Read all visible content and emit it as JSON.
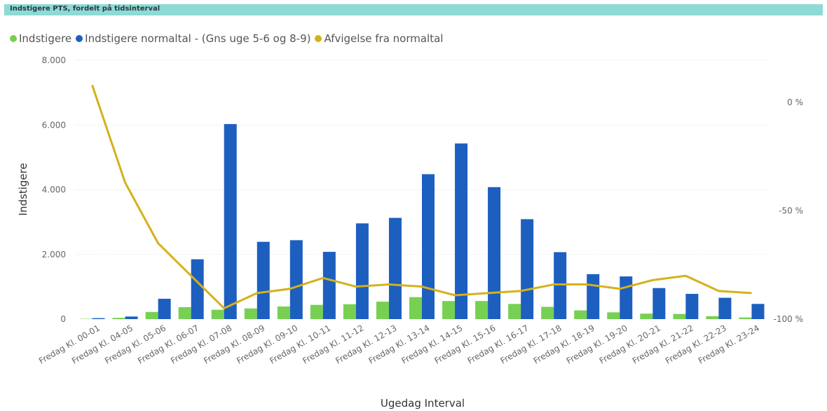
{
  "header": {
    "title": "Indstigere PTS, fordelt på tidsinterval"
  },
  "legend": [
    {
      "label": "Indstigere",
      "color": "#77d052"
    },
    {
      "label": "Indstigere normaltal - (Gns uge 5-6 og 8-9)",
      "color": "#1d5fbf"
    },
    {
      "label": "Afvigelse fra normaltal",
      "color": "#d4b11b"
    }
  ],
  "chart_data": {
    "type": "bar",
    "categories": [
      "Fredag Kl. 00-01",
      "Fredag Kl. 04-05",
      "Fredag Kl. 05-06",
      "Fredag Kl. 06-07",
      "Fredag Kl. 07-08",
      "Fredag Kl. 08-09",
      "Fredag Kl. 09-10",
      "Fredag Kl. 10-11",
      "Fredag Kl. 11-12",
      "Fredag Kl. 12-13",
      "Fredag Kl. 13-14",
      "Fredag Kl. 14-15",
      "Fredag Kl. 15-16",
      "Fredag Kl. 16-17",
      "Fredag Kl. 17-18",
      "Fredag Kl. 18-19",
      "Fredag Kl. 19-20",
      "Fredag Kl. 20-21",
      "Fredag Kl. 21-22",
      "Fredag Kl. 22-23",
      "Fredag Kl. 23-24"
    ],
    "series": [
      {
        "name": "Indstigere",
        "axis": "left",
        "kind": "bar",
        "color": "#77d052",
        "values": [
          10,
          40,
          220,
          370,
          290,
          330,
          390,
          440,
          460,
          540,
          680,
          560,
          560,
          470,
          380,
          270,
          210,
          170,
          160,
          90,
          50
        ]
      },
      {
        "name": "Indstigere normaltal - (Gns uge 5-6 og 8-9)",
        "axis": "left",
        "kind": "bar",
        "color": "#1d5fbf",
        "values": [
          30,
          80,
          630,
          1850,
          6030,
          2390,
          2440,
          2080,
          2960,
          3130,
          4480,
          5430,
          4080,
          3090,
          2070,
          1390,
          1320,
          960,
          780,
          660,
          470
        ]
      },
      {
        "name": "Afvigelse fra normaltal",
        "axis": "right",
        "kind": "line",
        "color": "#d4b11b",
        "values": [
          8,
          -37,
          -65,
          -80,
          -95,
          -88,
          -86,
          -81,
          -85,
          -84,
          -85,
          -89,
          -88,
          -87,
          -84,
          -84,
          -86,
          -82,
          -80,
          -87,
          -88
        ]
      }
    ],
    "y_left": {
      "label": "Indstigere",
      "ticks": [
        0,
        2000,
        4000,
        6000,
        8000
      ],
      "tick_labels": [
        "0",
        "2.000",
        "4.000",
        "6.000",
        "8.000"
      ],
      "min": 0,
      "max": 8000
    },
    "y_right": {
      "ticks": [
        0,
        -50,
        -100
      ],
      "tick_labels": [
        "0 %",
        "-50 %",
        "-100 %"
      ],
      "min": -100,
      "max": 0
    },
    "xlabel": "Ugedag Interval",
    "grid": true,
    "legend_position": "top-left"
  }
}
